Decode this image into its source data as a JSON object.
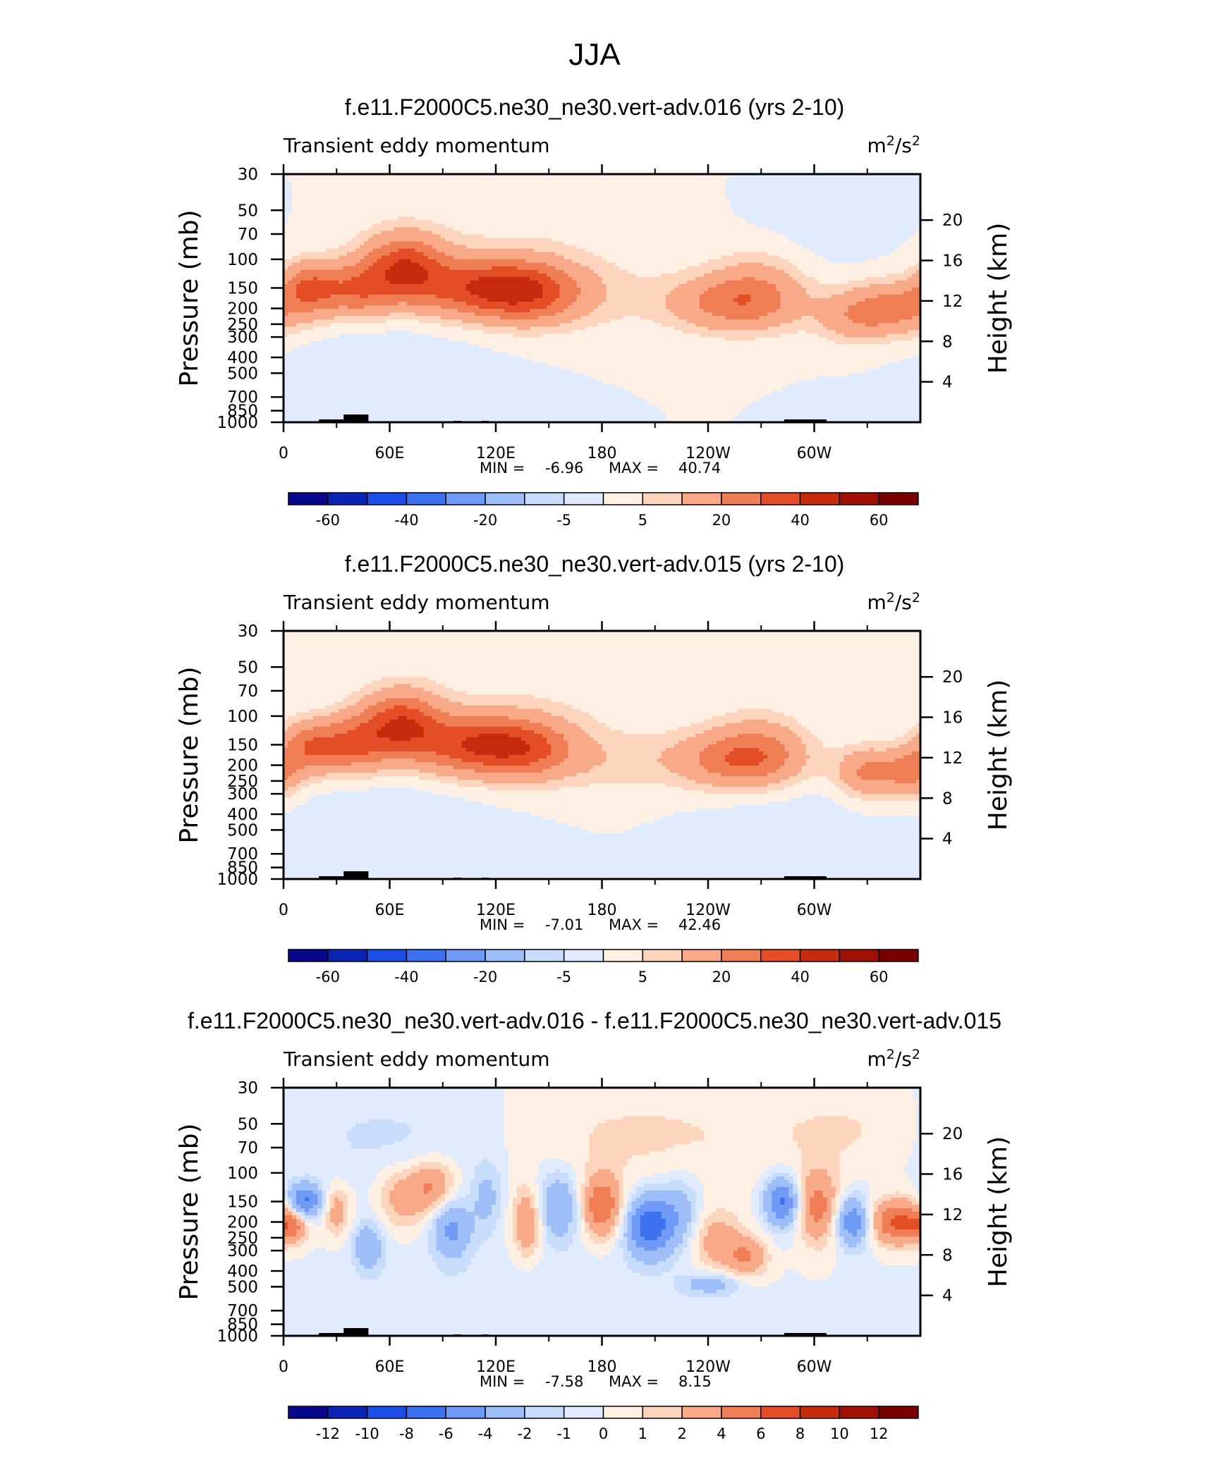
{
  "figure": {
    "title": "JJA"
  },
  "colors": {
    "ncl_blue_red": [
      "#08088c",
      "#0a24b4",
      "#1c4ee6",
      "#3c72f0",
      "#6e9af6",
      "#9ebefa",
      "#c8dcfc",
      "#e0ecfe",
      "#fff0e4",
      "#fdd4bc",
      "#f8aa88",
      "#f07e55",
      "#e44e26",
      "#c82a0e",
      "#a01004",
      "#780000"
    ]
  },
  "chart_data": [
    {
      "type": "heatmap",
      "plot_id": "p1",
      "title": "f.e11.F2000C5.ne30_ne30.vert-adv.016 (yrs 2-10)",
      "left_string": "Transient eddy momentum",
      "units_base": "m",
      "units_exp1": "2",
      "units_sep": "/s",
      "units_exp2": "2",
      "ylabel": "Pressure (mb)",
      "ylabel_right": "Height (km)",
      "xticks": [
        "0",
        "60E",
        "120E",
        "180",
        "120W",
        "60W"
      ],
      "yticks": [
        "30",
        "50",
        "70",
        "100",
        "150",
        "200",
        "250",
        "300",
        "400",
        "500",
        "700",
        "850",
        "1000"
      ],
      "yticks_right": [
        "20",
        "16",
        "12",
        "8",
        "4"
      ],
      "min_label": "MIN =",
      "min": "-6.96",
      "max_label": "MAX =",
      "max": "40.74",
      "colorbar_labels": [
        "-60",
        "-40",
        "-20",
        "-5",
        "5",
        "20",
        "40",
        "60"
      ],
      "contour_levels": [
        -70,
        -60,
        -50,
        -40,
        -30,
        -20,
        -10,
        -5,
        0,
        5,
        10,
        20,
        30,
        40,
        50,
        60,
        70
      ],
      "field": [
        {
          "lon": 15,
          "p": 150,
          "val": 28,
          "sx": 12,
          "sy": 0.26
        },
        {
          "lon": 42,
          "p": 155,
          "val": 24,
          "sx": 14,
          "sy": 0.28
        },
        {
          "lon": 68,
          "p": 110,
          "val": 34,
          "sx": 16,
          "sy": 0.32
        },
        {
          "lon": 110,
          "p": 150,
          "val": 34,
          "sx": 28,
          "sy": 0.3
        },
        {
          "lon": 140,
          "p": 160,
          "val": 22,
          "sx": 20,
          "sy": 0.3
        },
        {
          "lon": 170,
          "p": 170,
          "val": 6,
          "sx": 30,
          "sy": 0.34
        },
        {
          "lon": 255,
          "p": 185,
          "val": 24,
          "sx": 26,
          "sy": 0.28
        },
        {
          "lon": 268,
          "p": 140,
          "val": 10,
          "sx": 18,
          "sy": 0.36
        },
        {
          "lon": 345,
          "p": 200,
          "val": 24,
          "sx": 18,
          "sy": 0.26
        },
        {
          "lon": 320,
          "p": 230,
          "val": 12,
          "sx": 14,
          "sy": 0.25
        },
        {
          "lon": 140,
          "p": 70,
          "val": 3,
          "sx": 60,
          "sy": 0.6
        },
        {
          "lon": 60,
          "p": 350,
          "val": -3,
          "sx": 40,
          "sy": 0.45
        },
        {
          "lon": 300,
          "p": 60,
          "val": -2,
          "sx": 30,
          "sy": 0.5
        }
      ]
    },
    {
      "type": "heatmap",
      "plot_id": "p2",
      "title": "f.e11.F2000C5.ne30_ne30.vert-adv.015 (yrs 2-10)",
      "left_string": "Transient eddy momentum",
      "units_base": "m",
      "units_exp1": "2",
      "units_sep": "/s",
      "units_exp2": "2",
      "ylabel": "Pressure (mb)",
      "ylabel_right": "Height (km)",
      "xticks": [
        "0",
        "60E",
        "120E",
        "180",
        "120W",
        "60W"
      ],
      "yticks": [
        "30",
        "50",
        "70",
        "100",
        "150",
        "200",
        "250",
        "300",
        "400",
        "500",
        "700",
        "850",
        "1000"
      ],
      "yticks_right": [
        "20",
        "16",
        "12",
        "8",
        "4"
      ],
      "min_label": "MIN =",
      "min": "-7.01",
      "max_label": "MAX =",
      "max": "42.46",
      "colorbar_labels": [
        "-60",
        "-40",
        "-20",
        "-5",
        "5",
        "20",
        "40",
        "60"
      ],
      "contour_levels": [
        -70,
        -60,
        -50,
        -40,
        -30,
        -20,
        -10,
        -5,
        0,
        5,
        10,
        20,
        30,
        40,
        50,
        60,
        70
      ],
      "field": [
        {
          "lon": 15,
          "p": 155,
          "val": 26,
          "sx": 12,
          "sy": 0.26
        },
        {
          "lon": 40,
          "p": 150,
          "val": 26,
          "sx": 14,
          "sy": 0.28
        },
        {
          "lon": 66,
          "p": 110,
          "val": 34,
          "sx": 16,
          "sy": 0.32
        },
        {
          "lon": 108,
          "p": 150,
          "val": 36,
          "sx": 26,
          "sy": 0.3
        },
        {
          "lon": 140,
          "p": 160,
          "val": 20,
          "sx": 20,
          "sy": 0.3
        },
        {
          "lon": 190,
          "p": 190,
          "val": 7,
          "sx": 30,
          "sy": 0.3
        },
        {
          "lon": 258,
          "p": 185,
          "val": 26,
          "sx": 24,
          "sy": 0.28
        },
        {
          "lon": 270,
          "p": 150,
          "val": 10,
          "sx": 18,
          "sy": 0.36
        },
        {
          "lon": 330,
          "p": 220,
          "val": 22,
          "sx": 12,
          "sy": 0.24
        },
        {
          "lon": 355,
          "p": 220,
          "val": 22,
          "sx": 10,
          "sy": 0.24
        },
        {
          "lon": 150,
          "p": 70,
          "val": 3,
          "sx": 60,
          "sy": 0.6
        },
        {
          "lon": 60,
          "p": 350,
          "val": -3,
          "sx": 40,
          "sy": 0.45
        },
        {
          "lon": 280,
          "p": 400,
          "val": -3,
          "sx": 30,
          "sy": 0.45
        }
      ]
    },
    {
      "type": "heatmap",
      "plot_id": "p3",
      "title": "f.e11.F2000C5.ne30_ne30.vert-adv.016 - f.e11.F2000C5.ne30_ne30.vert-adv.015",
      "left_string": "Transient eddy momentum",
      "units_base": "m",
      "units_exp1": "2",
      "units_sep": "/s",
      "units_exp2": "2",
      "ylabel": "Pressure (mb)",
      "ylabel_right": "Height (km)",
      "xticks": [
        "0",
        "60E",
        "120E",
        "180",
        "120W",
        "60W"
      ],
      "yticks": [
        "30",
        "50",
        "70",
        "100",
        "150",
        "200",
        "250",
        "300",
        "400",
        "500",
        "700",
        "850",
        "1000"
      ],
      "yticks_right": [
        "20",
        "16",
        "12",
        "8",
        "4"
      ],
      "min_label": "MIN =",
      "min": "-7.58",
      "max_label": "MAX =",
      "max": "8.15",
      "colorbar_labels": [
        "-12",
        "-10",
        "-8",
        "-6",
        "-4",
        "-2",
        "-1",
        "0",
        "1",
        "2",
        "4",
        "6",
        "8",
        "10",
        "12"
      ],
      "contour_levels": [
        -14,
        -12,
        -10,
        -8,
        -6,
        -4,
        -2,
        -1,
        0,
        1,
        2,
        4,
        6,
        8,
        10,
        12,
        14
      ],
      "field": [
        {
          "lon": 12,
          "p": 150,
          "val": -6.5,
          "sx": 7,
          "sy": 0.18
        },
        {
          "lon": 5,
          "p": 210,
          "val": 4,
          "sx": 6,
          "sy": 0.16
        },
        {
          "lon": 30,
          "p": 170,
          "val": 3,
          "sx": 5,
          "sy": 0.25
        },
        {
          "lon": 48,
          "p": 280,
          "val": -3.5,
          "sx": 6,
          "sy": 0.25
        },
        {
          "lon": 68,
          "p": 140,
          "val": 3,
          "sx": 10,
          "sy": 0.3
        },
        {
          "lon": 85,
          "p": 120,
          "val": 4,
          "sx": 8,
          "sy": 0.25
        },
        {
          "lon": 95,
          "p": 220,
          "val": -4.5,
          "sx": 8,
          "sy": 0.3
        },
        {
          "lon": 115,
          "p": 140,
          "val": -2.5,
          "sx": 6,
          "sy": 0.35
        },
        {
          "lon": 138,
          "p": 200,
          "val": 4,
          "sx": 6,
          "sy": 0.35
        },
        {
          "lon": 155,
          "p": 160,
          "val": -4,
          "sx": 9,
          "sy": 0.35
        },
        {
          "lon": 180,
          "p": 160,
          "val": 6,
          "sx": 8,
          "sy": 0.3
        },
        {
          "lon": 207,
          "p": 210,
          "val": -7.2,
          "sx": 10,
          "sy": 0.32
        },
        {
          "lon": 225,
          "p": 170,
          "val": -2.5,
          "sx": 8,
          "sy": 0.35
        },
        {
          "lon": 245,
          "p": 260,
          "val": 3,
          "sx": 10,
          "sy": 0.3
        },
        {
          "lon": 262,
          "p": 330,
          "val": 4,
          "sx": 8,
          "sy": 0.2
        },
        {
          "lon": 242,
          "p": 480,
          "val": -3,
          "sx": 12,
          "sy": 0.12
        },
        {
          "lon": 282,
          "p": 150,
          "val": -6.5,
          "sx": 7,
          "sy": 0.25
        },
        {
          "lon": 302,
          "p": 160,
          "val": 5,
          "sx": 8,
          "sy": 0.35
        },
        {
          "lon": 322,
          "p": 200,
          "val": -6,
          "sx": 7,
          "sy": 0.25
        },
        {
          "lon": 348,
          "p": 200,
          "val": 6.5,
          "sx": 12,
          "sy": 0.22
        },
        {
          "lon": 200,
          "p": 60,
          "val": 1.2,
          "sx": 60,
          "sy": 0.5
        },
        {
          "lon": 60,
          "p": 60,
          "val": -1.2,
          "sx": 50,
          "sy": 0.5
        },
        {
          "lon": 320,
          "p": 55,
          "val": 1.1,
          "sx": 30,
          "sy": 0.4
        },
        {
          "lon": 120,
          "p": 600,
          "val": -0.8,
          "sx": 80,
          "sy": 0.5
        }
      ]
    }
  ]
}
